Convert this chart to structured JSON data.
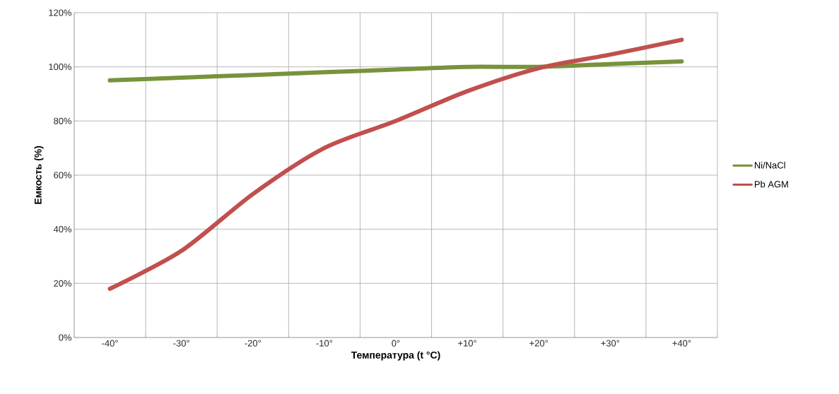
{
  "chart_data": {
    "type": "line",
    "xlabel": "Температура (t °C)",
    "ylabel": "Емкость (%)",
    "categories": [
      "-40°",
      "-30°",
      "-20°",
      "-10°",
      "0°",
      "+10°",
      "+20°",
      "+30°",
      "+40°"
    ],
    "series": [
      {
        "name": "Ni/NaCl",
        "color": "#77933c",
        "values": [
          95,
          96,
          97,
          98,
          99,
          100,
          100,
          101,
          102
        ]
      },
      {
        "name": "Pb AGM",
        "color": "#c0504d",
        "values": [
          18,
          32,
          53,
          70,
          80,
          91,
          99.5,
          104.5,
          110
        ]
      }
    ],
    "ylim": [
      0,
      120
    ],
    "yticks": [
      {
        "value": 0,
        "label": "0%"
      },
      {
        "value": 20,
        "label": "20%"
      },
      {
        "value": 40,
        "label": "40%"
      },
      {
        "value": 60,
        "label": "60%"
      },
      {
        "value": 80,
        "label": "80%"
      },
      {
        "value": 100,
        "label": "100%"
      },
      {
        "value": 120,
        "label": "120%"
      }
    ],
    "grid": true,
    "legend": "right",
    "marker": "none",
    "line_style": "solid"
  }
}
